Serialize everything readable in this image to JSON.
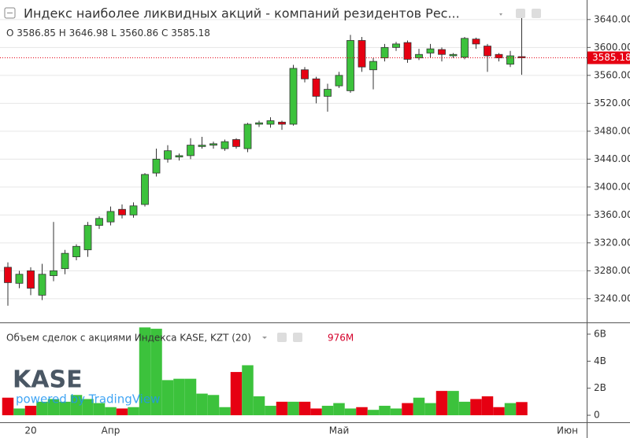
{
  "chart_data": [
    {
      "type": "candlestick",
      "title": "Индекс наиболее ликвидных акций - компаний резидентов Рес...",
      "legend_labels": [
        "O",
        "H",
        "L",
        "C"
      ],
      "categories": [
        null,
        null,
        "20",
        null,
        null,
        null,
        null,
        null,
        null,
        "Апр",
        null,
        null,
        null,
        null,
        null,
        null,
        null,
        null,
        null,
        null,
        null,
        null,
        null,
        null,
        null,
        null,
        null,
        null,
        null,
        "Май",
        null,
        null,
        null,
        null,
        null,
        null,
        null,
        null,
        null,
        null,
        null,
        null,
        null,
        null,
        null,
        null,
        null,
        null,
        null,
        "Июн"
      ],
      "open": [
        3285,
        3262,
        3280,
        3245,
        3273,
        3283,
        3300,
        3310,
        3345,
        3350,
        3368,
        3360,
        3375,
        3420,
        3440,
        3443,
        3445,
        3458,
        3460,
        3455,
        3468,
        3455,
        3490,
        3490,
        3493,
        3490,
        3568,
        3555,
        3530,
        3545,
        3538,
        3610,
        3568,
        3585,
        3600,
        3607,
        3585,
        3592,
        3597,
        3588,
        3586,
        3612,
        3602,
        3590,
        3576,
        3586.85,
        null,
        null,
        null,
        null
      ],
      "high": [
        3292,
        3280,
        3285,
        3290,
        3350,
        3310,
        3318,
        3350,
        3358,
        3372,
        3375,
        3378,
        3420,
        3455,
        3460,
        3448,
        3470,
        3472,
        3465,
        3468,
        3470,
        3492,
        3495,
        3500,
        3495,
        3575,
        3572,
        3558,
        3548,
        3565,
        3618,
        3615,
        3585,
        3605,
        3608,
        3610,
        3598,
        3605,
        3600,
        3592,
        3615,
        3614,
        3605,
        3592,
        3595,
        3646.98,
        null,
        null,
        null,
        null
      ],
      "low": [
        3230,
        3255,
        3245,
        3238,
        3265,
        3275,
        3295,
        3300,
        3340,
        3345,
        3355,
        3356,
        3372,
        3415,
        3435,
        3438,
        3440,
        3455,
        3455,
        3452,
        3455,
        3450,
        3486,
        3485,
        3482,
        3488,
        3550,
        3520,
        3508,
        3542,
        3535,
        3565,
        3540,
        3580,
        3595,
        3578,
        3582,
        3585,
        3580,
        3585,
        3583,
        3598,
        3565,
        3580,
        3572,
        3560.86,
        null,
        null,
        null,
        null
      ],
      "close": [
        3263,
        3275,
        3255,
        3275,
        3280,
        3305,
        3315,
        3345,
        3355,
        3365,
        3360,
        3373,
        3418,
        3440,
        3452,
        3445,
        3460,
        3460,
        3462,
        3465,
        3458,
        3490,
        3492,
        3495,
        3490,
        3570,
        3555,
        3530,
        3540,
        3560,
        3610,
        3572,
        3580,
        3600,
        3605,
        3583,
        3590,
        3598,
        3590,
        3590,
        3613,
        3605,
        3588,
        3585,
        3588,
        3585.18,
        null,
        null,
        null,
        null
      ],
      "color_up": "#3cc23c",
      "color_down": "#e60012",
      "grid": true,
      "ylim": [
        3206,
        3668
      ],
      "yticks": [
        {
          "value": 3240,
          "label": "3240.00"
        },
        {
          "value": 3280,
          "label": "3280.00"
        },
        {
          "value": 3320,
          "label": "3320.00"
        },
        {
          "value": 3360,
          "label": "3360.00"
        },
        {
          "value": 3400,
          "label": "3400.00"
        },
        {
          "value": 3440,
          "label": "3440.00"
        },
        {
          "value": 3480,
          "label": "3480.00"
        },
        {
          "value": 3520,
          "label": "3520.00"
        },
        {
          "value": 3560,
          "label": "3560.00"
        },
        {
          "value": 3600,
          "label": "3600.00"
        },
        {
          "value": 3640,
          "label": "3640.00"
        }
      ]
    },
    {
      "type": "bar",
      "title": "Объем сделок с акциями Индекса KASE, KZT (20)",
      "values": [
        1.3,
        0.5,
        0.7,
        1.0,
        1.2,
        1.0,
        1.5,
        1.2,
        0.9,
        0.6,
        0.5,
        0.6,
        6.5,
        6.4,
        2.6,
        2.7,
        2.7,
        1.6,
        1.5,
        0.6,
        3.2,
        3.7,
        1.4,
        0.7,
        1.0,
        1.0,
        1.0,
        0.5,
        0.7,
        0.9,
        0.5,
        0.6,
        0.4,
        0.7,
        0.5,
        0.9,
        1.3,
        0.9,
        1.8,
        1.8,
        1.0,
        1.2,
        1.4,
        0.6,
        0.9,
        0.976,
        null,
        null,
        null,
        null
      ],
      "value_labels": [
        null,
        null,
        null,
        null,
        null,
        null,
        null,
        null,
        null,
        null,
        null,
        null,
        null,
        null,
        null,
        null,
        null,
        null,
        null,
        null,
        null,
        null,
        null,
        null,
        null,
        null,
        null,
        null,
        null,
        null,
        null,
        null,
        null,
        null,
        null,
        null,
        null,
        null,
        null,
        null,
        null,
        null,
        null,
        null,
        null,
        "976M",
        null,
        null,
        null,
        null
      ],
      "ylim": [
        -0.52,
        6.87
      ],
      "yticks": [
        0,
        {
          "value": 2,
          "label": "2B"
        },
        {
          "value": 4,
          "label": "4B"
        },
        {
          "value": 6,
          "label": "6B"
        }
      ]
    }
  ],
  "watermark": {
    "logo": "KASE",
    "text": "powered by TradingView"
  }
}
